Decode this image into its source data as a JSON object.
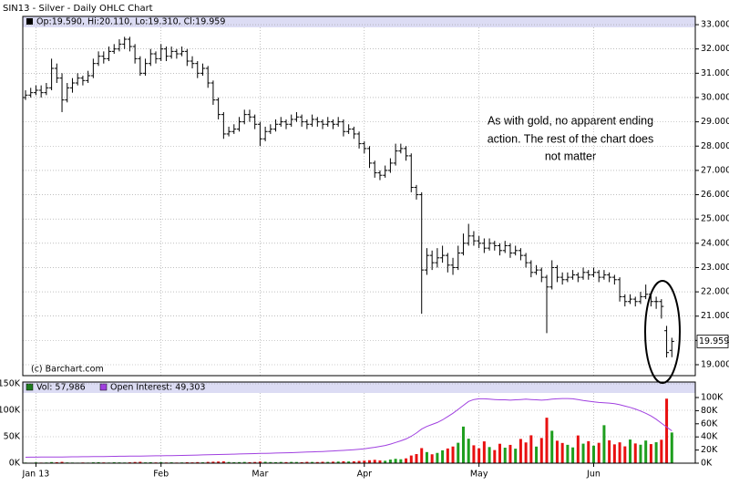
{
  "chart_data": {
    "type": "ohlc",
    "title": "SIN13 - Silver - Daily OHLC Chart",
    "ohlc_legend": "Op:19.590, Hi:20.110, Lo:19.310, Cl:19.959",
    "source": "(c) Barchart.com",
    "annotation": [
      "As with gold, no apparent ending",
      "action.  The rest of the chart does",
      "not matter"
    ],
    "color": "#000000",
    "grid": true,
    "categories": [
      null,
      null,
      "Jan 13",
      null,
      null,
      null,
      null,
      null,
      null,
      null,
      null,
      null,
      null,
      null,
      null,
      null,
      null,
      null,
      null,
      null,
      null,
      null,
      null,
      null,
      null,
      null,
      "Feb",
      null,
      null,
      null,
      null,
      null,
      null,
      null,
      null,
      null,
      null,
      null,
      null,
      null,
      null,
      null,
      null,
      null,
      null,
      "Mar",
      null,
      null,
      null,
      null,
      null,
      null,
      null,
      null,
      null,
      null,
      null,
      null,
      null,
      null,
      null,
      null,
      null,
      null,
      null,
      "Apr",
      null,
      null,
      null,
      null,
      null,
      null,
      null,
      null,
      null,
      null,
      null,
      null,
      null,
      null,
      null,
      null,
      null,
      null,
      null,
      null,
      null,
      "May",
      null,
      null,
      null,
      null,
      null,
      null,
      null,
      null,
      null,
      null,
      null,
      null,
      null,
      null,
      null,
      null,
      null,
      null,
      null,
      null,
      null,
      "Jun",
      null,
      null,
      null,
      null,
      null,
      null,
      null,
      null,
      null,
      null,
      null,
      null,
      null,
      null,
      null
    ],
    "open": [
      30.0,
      30.1,
      30.2,
      30.3,
      30.2,
      30.4,
      31.2,
      30.8,
      29.9,
      30.4,
      30.6,
      30.8,
      30.7,
      30.9,
      31.4,
      31.7,
      31.6,
      31.9,
      32.0,
      32.2,
      32.4,
      32.1,
      31.6,
      31.0,
      31.4,
      31.8,
      31.6,
      32.0,
      31.7,
      31.9,
      31.8,
      31.9,
      31.5,
      31.4,
      31.0,
      31.2,
      30.6,
      29.9,
      29.3,
      28.5,
      28.6,
      28.7,
      29.0,
      29.3,
      29.2,
      28.9,
      28.3,
      28.6,
      28.7,
      28.9,
      29.0,
      28.9,
      29.1,
      29.2,
      29.0,
      28.9,
      29.1,
      29.0,
      28.9,
      29.0,
      28.9,
      29.0,
      28.6,
      28.7,
      28.5,
      28.1,
      27.9,
      27.3,
      26.9,
      26.8,
      27.0,
      27.3,
      27.8,
      27.9,
      27.6,
      26.3,
      26.0,
      22.9,
      23.5,
      23.2,
      23.4,
      23.5,
      23.1,
      23.0,
      23.6,
      24.0,
      24.3,
      24.1,
      24.0,
      23.8,
      24.0,
      23.9,
      23.7,
      23.9,
      23.6,
      23.7,
      23.5,
      23.2,
      22.8,
      22.9,
      22.6,
      22.2,
      23.0,
      22.6,
      22.5,
      22.6,
      22.7,
      22.6,
      22.8,
      22.7,
      22.8,
      22.6,
      22.7,
      22.6,
      22.5,
      21.8,
      21.6,
      21.7,
      21.6,
      21.8,
      21.9,
      21.6,
      21.6,
      20.4,
      19.59
    ],
    "high": [
      30.3,
      30.4,
      30.5,
      30.5,
      30.6,
      31.6,
      31.4,
      31.0,
      30.6,
      30.8,
      31.0,
      30.9,
      31.1,
      31.6,
      31.9,
      31.9,
      32.1,
      32.2,
      32.4,
      32.5,
      32.5,
      32.2,
      31.7,
      31.6,
      32.0,
      31.9,
      32.2,
      32.1,
      32.1,
      32.0,
      32.1,
      32.0,
      31.7,
      31.5,
      31.4,
      31.3,
      30.7,
      30.0,
      29.4,
      28.8,
      28.9,
      29.2,
      29.5,
      29.5,
      29.3,
      29.0,
      28.8,
      28.9,
      29.1,
      29.2,
      29.1,
      29.3,
      29.4,
      29.3,
      29.1,
      29.3,
      29.2,
      29.1,
      29.2,
      29.1,
      29.2,
      29.1,
      28.9,
      28.8,
      28.6,
      28.2,
      28.0,
      27.4,
      27.0,
      27.2,
      27.5,
      28.1,
      28.1,
      28.0,
      27.7,
      26.4,
      26.1,
      23.8,
      23.7,
      23.8,
      23.9,
      23.6,
      23.4,
      23.9,
      24.4,
      24.8,
      24.5,
      24.3,
      24.2,
      24.2,
      24.1,
      24.0,
      24.1,
      24.0,
      23.9,
      23.8,
      23.6,
      23.3,
      23.1,
      23.0,
      22.7,
      23.3,
      23.1,
      22.8,
      22.8,
      22.9,
      22.8,
      23.0,
      22.9,
      23.0,
      22.9,
      22.9,
      22.8,
      22.7,
      22.6,
      21.9,
      21.9,
      21.8,
      22.0,
      22.3,
      22.0,
      21.8,
      21.7,
      20.6,
      20.11
    ],
    "low": [
      29.9,
      30.0,
      30.1,
      30.0,
      30.1,
      30.3,
      30.6,
      29.4,
      29.8,
      30.2,
      30.5,
      30.5,
      30.6,
      30.8,
      31.3,
      31.4,
      31.5,
      31.8,
      31.9,
      32.0,
      31.9,
      31.4,
      30.9,
      30.9,
      31.3,
      31.4,
      31.5,
      31.5,
      31.6,
      31.6,
      31.7,
      31.3,
      31.2,
      30.8,
      30.9,
      30.4,
      29.7,
      29.1,
      28.3,
      28.4,
      28.5,
      28.6,
      28.9,
      29.0,
      28.7,
      28.0,
      28.2,
      28.5,
      28.6,
      28.8,
      28.7,
      28.8,
      29.0,
      28.8,
      28.7,
      28.8,
      28.8,
      28.7,
      28.8,
      28.7,
      28.8,
      28.4,
      28.5,
      28.3,
      27.9,
      27.7,
      27.1,
      26.7,
      26.6,
      26.7,
      26.9,
      27.2,
      27.7,
      27.4,
      26.1,
      25.8,
      21.1,
      22.7,
      22.9,
      23.0,
      23.2,
      22.8,
      22.7,
      22.9,
      23.5,
      23.9,
      23.9,
      23.8,
      23.6,
      23.7,
      23.7,
      23.5,
      23.6,
      23.4,
      23.5,
      23.3,
      23.0,
      22.6,
      22.7,
      22.4,
      20.3,
      22.1,
      22.4,
      22.3,
      22.4,
      22.5,
      22.4,
      22.5,
      22.5,
      22.6,
      22.4,
      22.5,
      22.4,
      22.3,
      21.6,
      21.4,
      21.5,
      21.4,
      21.5,
      21.7,
      21.4,
      21.3,
      20.9,
      19.3,
      19.31
    ],
    "close": [
      30.1,
      30.2,
      30.3,
      30.2,
      30.4,
      31.2,
      30.8,
      29.9,
      30.4,
      30.6,
      30.8,
      30.7,
      30.9,
      31.4,
      31.7,
      31.6,
      31.9,
      32.0,
      32.2,
      32.4,
      32.1,
      31.6,
      31.0,
      31.4,
      31.8,
      31.6,
      32.0,
      31.7,
      31.9,
      31.8,
      31.9,
      31.5,
      31.4,
      31.0,
      31.2,
      30.6,
      29.9,
      29.3,
      28.5,
      28.6,
      28.7,
      29.0,
      29.3,
      29.2,
      28.9,
      28.3,
      28.6,
      28.7,
      28.9,
      29.0,
      28.9,
      29.1,
      29.2,
      29.0,
      28.9,
      29.1,
      29.0,
      28.9,
      29.0,
      28.9,
      29.0,
      28.6,
      28.7,
      28.5,
      28.1,
      27.9,
      27.3,
      26.9,
      26.8,
      27.0,
      27.3,
      27.8,
      27.9,
      27.6,
      26.3,
      26.0,
      22.9,
      23.5,
      23.2,
      23.4,
      23.5,
      23.1,
      23.0,
      23.6,
      24.0,
      24.3,
      24.1,
      24.0,
      23.8,
      24.0,
      23.9,
      23.7,
      23.9,
      23.6,
      23.7,
      23.5,
      23.2,
      22.8,
      22.9,
      22.6,
      22.2,
      23.0,
      22.6,
      22.5,
      22.6,
      22.7,
      22.6,
      22.8,
      22.7,
      22.8,
      22.6,
      22.7,
      22.6,
      22.5,
      21.8,
      21.6,
      21.7,
      21.6,
      21.8,
      21.9,
      21.6,
      21.6,
      21.4,
      19.5,
      19.959
    ],
    "ylim": [
      18.55,
      33.34
    ],
    "yticks": [
      {
        "value": 19,
        "label": "19.000"
      },
      {
        "value": 20,
        "label": "20.000"
      },
      {
        "value": 21,
        "label": "21.000"
      },
      {
        "value": 22,
        "label": "22.000"
      },
      {
        "value": 23,
        "label": "23.000"
      },
      {
        "value": 24,
        "label": "24.000"
      },
      {
        "value": 25,
        "label": "25.000"
      },
      {
        "value": 26,
        "label": "26.000"
      },
      {
        "value": 27,
        "label": "27.000"
      },
      {
        "value": 28,
        "label": "28.000"
      },
      {
        "value": 29,
        "label": "29.000"
      },
      {
        "value": 30,
        "label": "30.000"
      },
      {
        "value": 31,
        "label": "31.000"
      },
      {
        "value": 32,
        "label": "32.000"
      },
      {
        "value": 33,
        "label": "33.000"
      }
    ],
    "volume": {
      "name": "Vol: 57,986",
      "color": "#1e7b1e",
      "up_color": "#1e9e1e",
      "down_color": "#e81010",
      "values": [
        1200,
        900,
        1500,
        1100,
        1300,
        2100,
        1800,
        2500,
        1400,
        1200,
        1000,
        1300,
        1100,
        1600,
        1900,
        1400,
        1200,
        1700,
        1500,
        1300,
        1600,
        2200,
        2600,
        1500,
        1800,
        1400,
        1900,
        1300,
        1600,
        1200,
        1400,
        1700,
        1500,
        2000,
        1600,
        2400,
        2800,
        3100,
        3400,
        2200,
        1800,
        2000,
        2300,
        1900,
        2200,
        3000,
        2600,
        2100,
        1900,
        2300,
        2000,
        2400,
        2200,
        1900,
        2500,
        2300,
        2100,
        2600,
        2400,
        2800,
        3000,
        3600,
        3200,
        3500,
        4200,
        4800,
        5600,
        6300,
        5200,
        4600,
        6800,
        8200,
        7400,
        9100,
        14500,
        17200,
        28500,
        21000,
        16800,
        19400,
        24300,
        27800,
        31500,
        38600,
        69200,
        46300,
        33800,
        28100,
        41200,
        30500,
        24800,
        36700,
        29300,
        34600,
        27400,
        45800,
        39200,
        52700,
        31400,
        47600,
        86000,
        61300,
        42500,
        38200,
        34700,
        29800,
        52400,
        36900,
        41600,
        33100,
        38500,
        71800,
        43200,
        35600,
        39400,
        31800,
        44700,
        37300,
        34900,
        42800,
        36100,
        39600,
        44300,
        122000,
        57986
      ]
    },
    "vlim": [
      0,
      153450
    ],
    "vticks": [
      {
        "value": 0,
        "label": "0K"
      },
      {
        "value": 50000,
        "label": "50K"
      },
      {
        "value": 100000,
        "label": "100K"
      },
      {
        "value": 150000,
        "label": "150K"
      }
    ],
    "open_interest": {
      "name": "Open Interest: 49,303",
      "color": "#a040e0",
      "axis": "y2",
      "values": [
        9000,
        9100,
        9200,
        9300,
        9300,
        9400,
        9500,
        9500,
        9600,
        9700,
        9700,
        9800,
        9900,
        10000,
        10100,
        10200,
        10300,
        10400,
        10500,
        10600,
        10700,
        10800,
        10900,
        11000,
        11100,
        11200,
        11300,
        11400,
        11500,
        11600,
        11800,
        12000,
        12200,
        12400,
        12600,
        12800,
        13000,
        13200,
        13400,
        13600,
        13800,
        14000,
        14200,
        14400,
        14600,
        14800,
        15000,
        15200,
        15400,
        15600,
        15800,
        16000,
        16300,
        16600,
        16900,
        17200,
        17500,
        17800,
        18200,
        18600,
        19000,
        19500,
        20000,
        20500,
        21200,
        22000,
        23000,
        24200,
        25500,
        27000,
        29000,
        31500,
        34000,
        37000,
        41000,
        46000,
        52000,
        56000,
        59000,
        62000,
        66000,
        71000,
        76000,
        82000,
        88000,
        94000,
        97000,
        98000,
        98000,
        97500,
        97000,
        96500,
        96500,
        96000,
        96500,
        97000,
        97500,
        97000,
        96500,
        96000,
        96500,
        97500,
        98000,
        98500,
        98500,
        98000,
        97000,
        95500,
        94500,
        93500,
        92500,
        92000,
        91500,
        90500,
        89000,
        87000,
        85000,
        82500,
        79500,
        76000,
        72000,
        67000,
        61000,
        55000,
        49303
      ]
    },
    "y2lim": [
      0,
      123600
    ],
    "y2ticks": [
      {
        "value": 0,
        "label": "0K"
      },
      {
        "value": 20000,
        "label": "20K"
      },
      {
        "value": 40000,
        "label": "40K"
      },
      {
        "value": 60000,
        "label": "60K"
      },
      {
        "value": 80000,
        "label": "80K"
      },
      {
        "value": 100000,
        "label": "100K"
      }
    ]
  }
}
